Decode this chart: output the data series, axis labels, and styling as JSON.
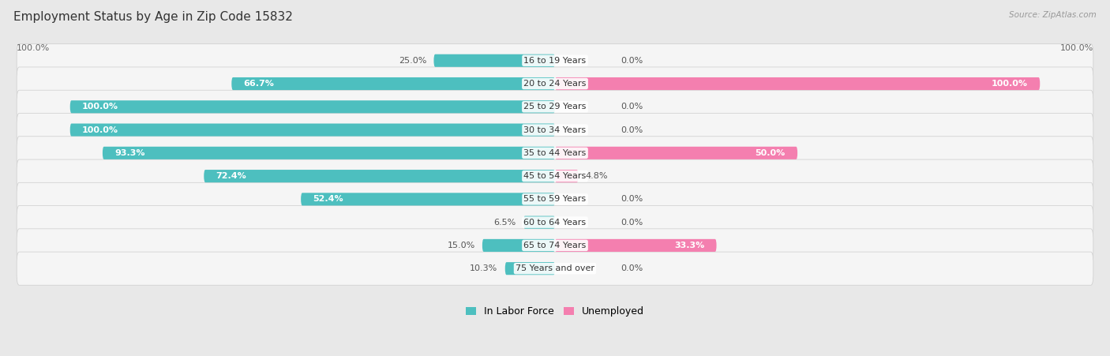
{
  "title": "Employment Status by Age in Zip Code 15832",
  "source": "Source: ZipAtlas.com",
  "categories": [
    "16 to 19 Years",
    "20 to 24 Years",
    "25 to 29 Years",
    "30 to 34 Years",
    "35 to 44 Years",
    "45 to 54 Years",
    "55 to 59 Years",
    "60 to 64 Years",
    "65 to 74 Years",
    "75 Years and over"
  ],
  "in_labor_force": [
    25.0,
    66.7,
    100.0,
    100.0,
    93.3,
    72.4,
    52.4,
    6.5,
    15.0,
    10.3
  ],
  "unemployed": [
    0.0,
    100.0,
    0.0,
    0.0,
    50.0,
    4.8,
    0.0,
    0.0,
    33.3,
    0.0
  ],
  "labor_color": "#4DBFBF",
  "unemployed_color": "#F47FAF",
  "fig_bg_color": "#E8E8E8",
  "row_bg_color": "#F5F5F5",
  "title_fontsize": 11,
  "bar_label_fontsize": 8,
  "cat_label_fontsize": 8,
  "legend_fontsize": 9,
  "source_fontsize": 7.5,
  "axis_tick_fontsize": 8
}
